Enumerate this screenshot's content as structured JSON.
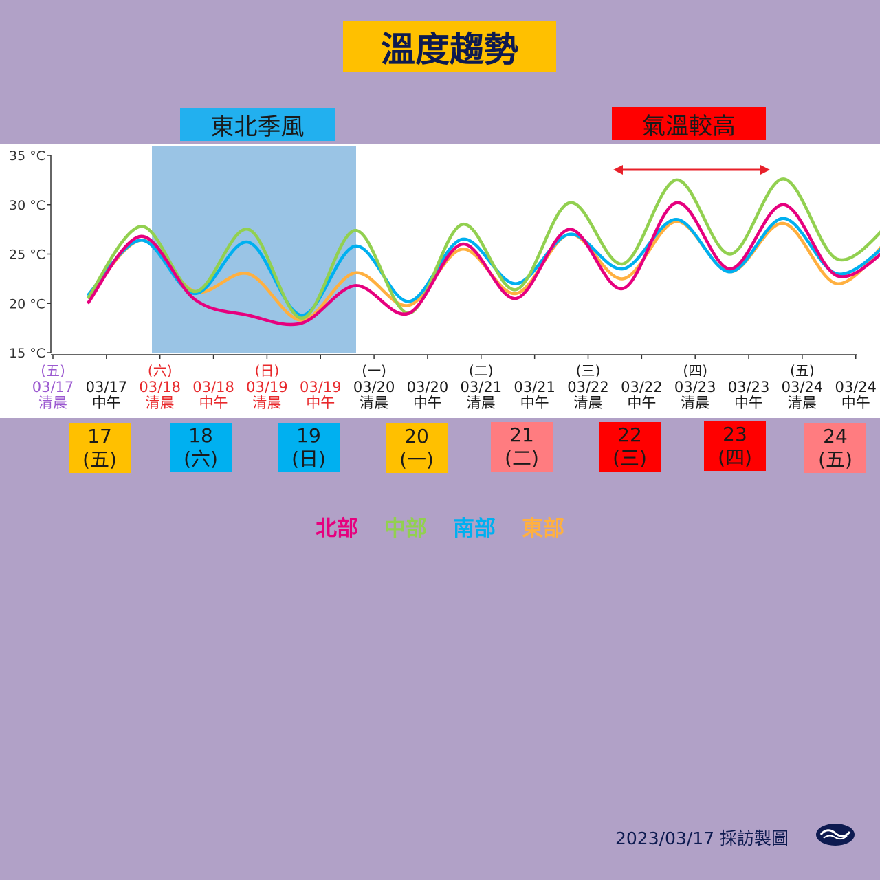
{
  "title": "溫度趨勢",
  "annotations": {
    "monsoon": "東北季風",
    "warm": "氣溫較高"
  },
  "days": [
    {
      "date": "17",
      "weekday": "(五)",
      "color": "#ffc000"
    },
    {
      "date": "18",
      "weekday": "(六)",
      "color": "#00b0f0"
    },
    {
      "date": "19",
      "weekday": "(日)",
      "color": "#00b0f0"
    },
    {
      "date": "20",
      "weekday": "(一)",
      "color": "#ffc000"
    },
    {
      "date": "21",
      "weekday": "(二)",
      "color": "#ff7c80"
    },
    {
      "date": "22",
      "weekday": "(三)",
      "color": "#ff0000"
    },
    {
      "date": "23",
      "weekday": "(四)",
      "color": "#ff0000"
    },
    {
      "date": "24",
      "weekday": "(五)",
      "color": "#ff7c80"
    }
  ],
  "legend": [
    {
      "name": "北部",
      "color": "#e6007e"
    },
    {
      "name": "中部",
      "color": "#92d050"
    },
    {
      "name": "南部",
      "color": "#00b0f0"
    },
    {
      "name": "東部",
      "color": "#ffb040"
    }
  ],
  "footer": "2023/03/17 採訪製圖",
  "chart_data": {
    "type": "line",
    "ylim": [
      15,
      35
    ],
    "yticks": [
      "35 °C",
      "30 °C",
      "25 °C",
      "20 °C",
      "15 °C"
    ],
    "ytick_values": [
      35,
      30,
      25,
      20,
      15
    ],
    "x_labels": [
      {
        "weekday": "(五)",
        "date": "03/17",
        "time": "清晨",
        "color": "#9b59d0"
      },
      {
        "weekday": "",
        "date": "03/17",
        "time": "中午",
        "color": "#1a1a1a"
      },
      {
        "weekday": "(六)",
        "date": "03/18",
        "time": "清晨",
        "color": "#e8282b"
      },
      {
        "weekday": "",
        "date": "03/18",
        "time": "中午",
        "color": "#e8282b"
      },
      {
        "weekday": "(日)",
        "date": "03/19",
        "time": "清晨",
        "color": "#e8282b"
      },
      {
        "weekday": "",
        "date": "03/19",
        "time": "中午",
        "color": "#e8282b"
      },
      {
        "weekday": "(一)",
        "date": "03/20",
        "time": "清晨",
        "color": "#1a1a1a"
      },
      {
        "weekday": "",
        "date": "03/20",
        "time": "中午",
        "color": "#1a1a1a"
      },
      {
        "weekday": "(二)",
        "date": "03/21",
        "time": "清晨",
        "color": "#1a1a1a"
      },
      {
        "weekday": "",
        "date": "03/21",
        "time": "中午",
        "color": "#1a1a1a"
      },
      {
        "weekday": "(三)",
        "date": "03/22",
        "time": "清晨",
        "color": "#1a1a1a"
      },
      {
        "weekday": "",
        "date": "03/22",
        "time": "中午",
        "color": "#1a1a1a"
      },
      {
        "weekday": "(四)",
        "date": "03/23",
        "time": "清晨",
        "color": "#1a1a1a"
      },
      {
        "weekday": "",
        "date": "03/23",
        "time": "中午",
        "color": "#1a1a1a"
      },
      {
        "weekday": "(五)",
        "date": "03/24",
        "time": "清晨",
        "color": "#1a1a1a"
      },
      {
        "weekday": "",
        "date": "03/24",
        "time": "中午",
        "color": "#1a1a1a"
      }
    ],
    "series": [
      {
        "name": "北部",
        "color": "#e6007e",
        "values": [
          20.0,
          26.8,
          20.4,
          18.8,
          18.0,
          21.8,
          19.0,
          26.0,
          20.5,
          27.5,
          21.5,
          30.2,
          23.5,
          30.0,
          22.8,
          25.8
        ]
      },
      {
        "name": "中部",
        "color": "#92d050",
        "values": [
          20.5,
          27.8,
          21.2,
          27.5,
          18.5,
          27.4,
          19.0,
          28.0,
          21.4,
          30.2,
          24.0,
          32.5,
          25.0,
          32.6,
          24.5,
          28.2
        ]
      },
      {
        "name": "南部",
        "color": "#00b0f0",
        "values": [
          20.8,
          26.4,
          21.0,
          26.2,
          18.8,
          25.8,
          20.2,
          26.5,
          22.0,
          27.0,
          23.5,
          28.5,
          23.2,
          28.6,
          23.0,
          26.3
        ]
      },
      {
        "name": "東部",
        "color": "#ffb040",
        "values": [
          20.5,
          26.4,
          21.2,
          23.0,
          18.3,
          23.1,
          19.8,
          25.5,
          21.0,
          27.0,
          22.5,
          28.3,
          23.2,
          28.1,
          22.0,
          26.8
        ]
      }
    ]
  }
}
